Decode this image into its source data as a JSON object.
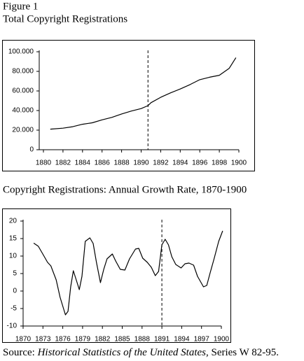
{
  "header": {
    "figure": "Figure 1"
  },
  "chart_data": [
    {
      "type": "line",
      "title": "Total Copyright Registrations",
      "x": [
        1880.7,
        1882,
        1883,
        1884,
        1885,
        1886,
        1887,
        1888,
        1889,
        1890,
        1890.7,
        1891,
        1892,
        1893,
        1894,
        1895,
        1896,
        1897,
        1898,
        1899,
        1899.7
      ],
      "values": [
        21000,
        22000,
        23500,
        26000,
        27500,
        30500,
        33000,
        36500,
        39500,
        42000,
        45000,
        48000,
        53500,
        58000,
        62000,
        66500,
        71500,
        74000,
        76000,
        83000,
        94000
      ],
      "color": "#000000",
      "xlim": [
        1880,
        1900
      ],
      "xticks": [
        1880,
        1882,
        1884,
        1886,
        1888,
        1890,
        1892,
        1894,
        1896,
        1898,
        1900
      ],
      "ylim": [
        0,
        100000
      ],
      "yticks": [
        0,
        {
          "value": 20000,
          "label": "20.000"
        },
        {
          "value": 40000,
          "label": "40.000"
        },
        {
          "value": 60000,
          "label": "60.000"
        },
        {
          "value": 80000,
          "label": "80.000"
        },
        {
          "value": 100000,
          "label": "100.000"
        }
      ],
      "vline_x": 1890.7
    },
    {
      "type": "line",
      "title": "Copyright Registrations: Annual Growth Rate, 1870-1900",
      "x": [
        1871.6,
        1872.3,
        1873.1,
        1873.7,
        1874.2,
        1875,
        1875.6,
        1876.4,
        1876.8,
        1877.2,
        1877.6,
        1878.2,
        1878.5,
        1878.9,
        1879.4,
        1880.1,
        1880.6,
        1881.1,
        1881.7,
        1882.2,
        1882.7,
        1883.5,
        1884,
        1884.7,
        1885.4,
        1886.1,
        1887,
        1887.5,
        1888.1,
        1888.8,
        1889.4,
        1890,
        1890.5,
        1891,
        1891.5,
        1892,
        1892.5,
        1893.1,
        1893.9,
        1894.5,
        1895.1,
        1895.8,
        1896.4,
        1897.3,
        1897.8,
        1898.3,
        1898.9,
        1899.6,
        1900.2
      ],
      "values": [
        13.7,
        12.8,
        10.2,
        8.2,
        7.2,
        3.2,
        -1.8,
        -6.8,
        -5.8,
        1.2,
        5.8,
        2.2,
        0.4,
        4.2,
        14.2,
        15.2,
        13.6,
        8.2,
        2.4,
        6.2,
        9.2,
        10.6,
        8.6,
        6.2,
        6,
        9.2,
        12,
        12.2,
        9.4,
        8.2,
        6.8,
        4.4,
        5.6,
        13.2,
        14.8,
        13.2,
        9.8,
        7.6,
        6.6,
        7.8,
        8,
        7.4,
        4.2,
        1.2,
        1.6,
        5.2,
        9.2,
        14.2,
        17.2
      ],
      "color": "#000000",
      "xlim": [
        1870,
        1900
      ],
      "xticks": [
        1870,
        1873,
        1876,
        1879,
        1882,
        1885,
        1888,
        1891,
        1894,
        1897,
        1900
      ],
      "ylim": [
        -10,
        20
      ],
      "yticks": [
        20,
        15,
        10,
        5,
        0,
        -5,
        -10
      ],
      "vline_x": 1891
    }
  ],
  "source": {
    "prefix": "Source:",
    "title": "Historical Statistics of the United States",
    "suffix": ", Series W 82-95."
  }
}
